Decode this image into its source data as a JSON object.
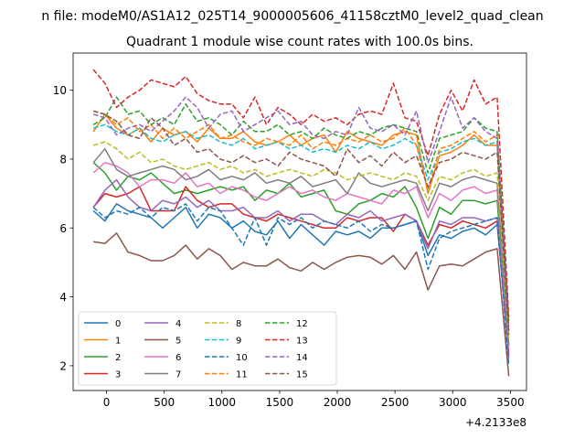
{
  "window_title": "n file: modeM0/AS1A12_025T14_9000005606_41158cztM0_level2_quad_clean",
  "chart_data": {
    "type": "line",
    "title": "Quadrant 1 module wise count rates with 100.0s bins.",
    "xlabel": "",
    "ylabel": "",
    "x_offset_label": "+4.2133e8",
    "xlim": [
      -290,
      3640
    ],
    "ylim": [
      1.28,
      11.08
    ],
    "x_ticks": [
      0,
      500,
      1000,
      1500,
      2000,
      2500,
      3000,
      3500
    ],
    "x_tick_labels": [
      "0",
      "500",
      "1000",
      "1500",
      "2000",
      "2500",
      "3000",
      "3500"
    ],
    "y_ticks": [
      2,
      4,
      6,
      8,
      10
    ],
    "y_tick_labels": [
      "2",
      "4",
      "6",
      "8",
      "10"
    ],
    "grid": false,
    "legend": {
      "placement": "lower-left",
      "columns": 4
    },
    "x": [
      -114,
      -14,
      86,
      186,
      286,
      386,
      486,
      586,
      686,
      786,
      886,
      986,
      1086,
      1186,
      1286,
      1386,
      1486,
      1586,
      1686,
      1786,
      1886,
      1986,
      2086,
      2186,
      2286,
      2386,
      2486,
      2586,
      2686,
      2786,
      2886,
      2986,
      3086,
      3186,
      3286,
      3386,
      3486
    ],
    "series": [
      {
        "name": "0",
        "color": "#1f77b4",
        "style": "solid",
        "values": [
          6.5,
          6.2,
          6.7,
          6.5,
          6.4,
          6.3,
          6.0,
          6.3,
          6.6,
          6.0,
          6.4,
          6.3,
          6.0,
          6.2,
          5.9,
          5.8,
          6.2,
          5.7,
          6.1,
          5.8,
          5.5,
          5.9,
          5.8,
          5.9,
          5.7,
          6.0,
          6.0,
          6.1,
          6.2,
          5.2,
          5.8,
          5.7,
          5.9,
          6.0,
          5.8,
          6.1,
          2.4
        ]
      },
      {
        "name": "1",
        "color": "#ff7f0e",
        "style": "solid",
        "values": [
          8.8,
          9.3,
          8.9,
          8.7,
          8.9,
          8.5,
          8.9,
          8.7,
          8.8,
          8.5,
          8.9,
          8.6,
          8.6,
          8.8,
          8.5,
          8.4,
          8.5,
          8.7,
          8.4,
          8.6,
          8.7,
          8.2,
          8.8,
          8.6,
          8.5,
          8.4,
          8.7,
          8.8,
          8.7,
          7.0,
          8.1,
          8.2,
          8.4,
          8.7,
          8.4,
          8.4,
          3.0
        ]
      },
      {
        "name": "2",
        "color": "#2ca02c",
        "style": "solid",
        "values": [
          7.9,
          7.6,
          7.1,
          7.5,
          7.4,
          7.6,
          7.3,
          7.0,
          7.1,
          7.0,
          7.1,
          7.2,
          7.1,
          7.2,
          6.8,
          7.1,
          7.0,
          7.3,
          6.9,
          7.0,
          7.1,
          6.5,
          6.4,
          6.7,
          6.8,
          7.0,
          6.9,
          7.2,
          6.6,
          5.7,
          6.6,
          6.4,
          6.8,
          6.8,
          6.7,
          6.8,
          2.6
        ]
      },
      {
        "name": "3",
        "color": "#d62728",
        "style": "solid",
        "values": [
          6.6,
          7.0,
          6.9,
          7.0,
          7.2,
          6.5,
          6.5,
          6.5,
          7.2,
          6.8,
          6.6,
          6.7,
          6.7,
          6.4,
          6.3,
          6.2,
          6.4,
          6.3,
          6.2,
          6.1,
          6.0,
          6.0,
          6.3,
          6.2,
          6.3,
          6.3,
          5.9,
          6.4,
          6.2,
          5.5,
          6.1,
          6.0,
          6.2,
          6.1,
          6.0,
          6.2,
          2.3
        ]
      },
      {
        "name": "4",
        "color": "#9467bd",
        "style": "solid",
        "values": [
          6.6,
          7.1,
          7.4,
          6.9,
          6.6,
          6.5,
          6.8,
          6.7,
          6.9,
          6.6,
          6.8,
          6.5,
          6.5,
          6.6,
          6.3,
          6.3,
          6.5,
          6.2,
          6.4,
          6.4,
          6.2,
          6.1,
          6.4,
          6.3,
          6.5,
          6.2,
          6.3,
          6.4,
          6.2,
          5.4,
          6.2,
          6.1,
          6.3,
          6.3,
          6.2,
          6.3,
          2.2
        ]
      },
      {
        "name": "5",
        "color": "#8c564b",
        "style": "solid",
        "values": [
          5.6,
          5.55,
          5.85,
          5.3,
          5.2,
          5.05,
          5.05,
          5.2,
          5.5,
          5.1,
          5.4,
          5.2,
          4.8,
          5.0,
          4.9,
          4.9,
          5.1,
          4.85,
          4.75,
          5.0,
          4.8,
          5.0,
          5.15,
          5.2,
          5.15,
          4.95,
          5.2,
          4.8,
          5.3,
          4.2,
          4.9,
          4.95,
          4.9,
          5.1,
          5.3,
          5.4,
          1.7
        ]
      },
      {
        "name": "6",
        "color": "#e377c2",
        "style": "solid",
        "values": [
          7.6,
          7.9,
          7.8,
          7.6,
          7.2,
          7.4,
          7.4,
          7.3,
          7.6,
          7.2,
          7.3,
          7.0,
          7.2,
          7.1,
          6.9,
          6.8,
          7.0,
          7.2,
          7.0,
          7.1,
          6.9,
          6.8,
          7.0,
          6.9,
          6.8,
          6.7,
          7.1,
          7.0,
          7.2,
          6.3,
          7.0,
          6.8,
          7.1,
          7.2,
          7.0,
          7.1,
          2.5
        ]
      },
      {
        "name": "7",
        "color": "#7f7f7f",
        "style": "solid",
        "values": [
          7.9,
          8.3,
          7.7,
          7.5,
          7.6,
          7.7,
          7.8,
          7.7,
          7.4,
          7.5,
          7.7,
          7.4,
          7.5,
          7.4,
          7.6,
          7.3,
          7.4,
          7.3,
          7.5,
          7.2,
          7.3,
          7.4,
          7.0,
          7.6,
          7.3,
          7.2,
          7.3,
          7.4,
          7.3,
          6.5,
          7.3,
          7.2,
          7.4,
          7.5,
          7.4,
          7.3,
          2.6
        ]
      },
      {
        "name": "8",
        "color": "#bcbd22",
        "style": "dashed",
        "values": [
          8.4,
          8.5,
          8.3,
          8.0,
          8.2,
          7.9,
          8.0,
          7.8,
          7.7,
          7.8,
          7.9,
          7.7,
          7.8,
          7.6,
          7.7,
          7.5,
          7.6,
          7.7,
          7.6,
          7.5,
          7.7,
          7.6,
          7.4,
          7.5,
          7.6,
          7.5,
          7.4,
          7.6,
          7.5,
          6.8,
          7.5,
          7.4,
          7.6,
          7.7,
          7.5,
          7.6,
          2.8
        ]
      },
      {
        "name": "9",
        "color": "#17becf",
        "style": "dashed",
        "values": [
          8.9,
          9.0,
          8.8,
          8.7,
          8.9,
          8.6,
          8.5,
          8.7,
          8.8,
          8.6,
          8.7,
          8.5,
          8.4,
          8.6,
          8.3,
          8.4,
          8.5,
          8.3,
          8.4,
          8.2,
          8.3,
          8.2,
          8.4,
          8.3,
          8.5,
          8.3,
          8.4,
          8.6,
          8.4,
          7.4,
          8.2,
          8.3,
          8.5,
          8.6,
          8.4,
          8.5,
          3.1
        ]
      },
      {
        "name": "10",
        "color": "#1f77b4",
        "style": "dashed",
        "values": [
          6.6,
          6.3,
          6.5,
          6.4,
          6.6,
          6.3,
          6.6,
          6.5,
          6.7,
          6.2,
          6.6,
          6.5,
          6.0,
          5.5,
          6.3,
          5.5,
          6.3,
          6.1,
          6.3,
          6.0,
          6.2,
          6.1,
          6.0,
          6.2,
          5.9,
          6.1,
          6.0,
          6.1,
          6.2,
          4.8,
          5.7,
          5.9,
          6.0,
          6.1,
          6.2,
          6.3,
          2.0
        ]
      },
      {
        "name": "11",
        "color": "#ff7f0e",
        "style": "dashed",
        "values": [
          9.4,
          9.3,
          9.0,
          9.2,
          8.8,
          9.0,
          8.6,
          8.9,
          8.6,
          8.8,
          9.0,
          8.6,
          8.7,
          8.5,
          8.4,
          8.6,
          8.5,
          8.4,
          8.7,
          8.3,
          8.5,
          8.4,
          8.6,
          8.5,
          8.7,
          8.5,
          8.6,
          8.9,
          8.4,
          7.1,
          8.3,
          8.4,
          8.6,
          8.8,
          8.5,
          8.7,
          3.2
        ]
      },
      {
        "name": "12",
        "color": "#2ca02c",
        "style": "dashed",
        "values": [
          9.0,
          9.2,
          9.8,
          9.3,
          9.4,
          9.0,
          9.2,
          9.0,
          9.6,
          9.1,
          9.2,
          9.0,
          8.7,
          9.1,
          8.8,
          8.8,
          9.0,
          8.7,
          8.8,
          8.6,
          8.9,
          8.7,
          8.6,
          8.8,
          8.7,
          8.9,
          9.0,
          8.9,
          8.8,
          7.6,
          8.6,
          8.7,
          8.8,
          9.2,
          8.9,
          8.8,
          3.3
        ]
      },
      {
        "name": "13",
        "color": "#d62728",
        "style": "dashed",
        "values": [
          10.6,
          10.2,
          9.5,
          9.8,
          10.0,
          10.3,
          10.2,
          10.1,
          10.4,
          9.9,
          9.7,
          9.6,
          9.6,
          9.2,
          9.8,
          9.0,
          9.5,
          9.3,
          9.0,
          9.3,
          9.1,
          9.2,
          9.0,
          9.3,
          9.4,
          9.3,
          10.2,
          9.2,
          9.1,
          8.1,
          9.3,
          10.0,
          9.4,
          10.3,
          9.6,
          9.8,
          3.4
        ]
      },
      {
        "name": "14",
        "color": "#9467bd",
        "style": "dashed",
        "values": [
          9.3,
          9.2,
          8.7,
          8.9,
          9.0,
          8.8,
          9.1,
          9.4,
          9.8,
          9.5,
          8.9,
          9.3,
          9.4,
          8.8,
          9.0,
          9.2,
          9.4,
          9.0,
          9.1,
          8.7,
          8.6,
          8.8,
          8.7,
          9.5,
          8.9,
          8.8,
          9.0,
          8.7,
          9.4,
          7.9,
          8.8,
          9.8,
          8.9,
          9.2,
          8.8,
          8.6,
          3.0
        ]
      },
      {
        "name": "15",
        "color": "#8c564b",
        "style": "dashed",
        "values": [
          9.4,
          9.3,
          9.1,
          8.7,
          8.6,
          9.2,
          8.9,
          8.4,
          8.6,
          8.2,
          8.3,
          8.0,
          7.9,
          8.1,
          7.9,
          8.0,
          7.8,
          8.2,
          8.0,
          7.9,
          7.8,
          7.5,
          8.3,
          7.9,
          8.1,
          7.8,
          8.2,
          7.9,
          8.1,
          7.2,
          7.9,
          8.0,
          8.2,
          8.1,
          8.0,
          8.2,
          2.9
        ]
      }
    ]
  }
}
